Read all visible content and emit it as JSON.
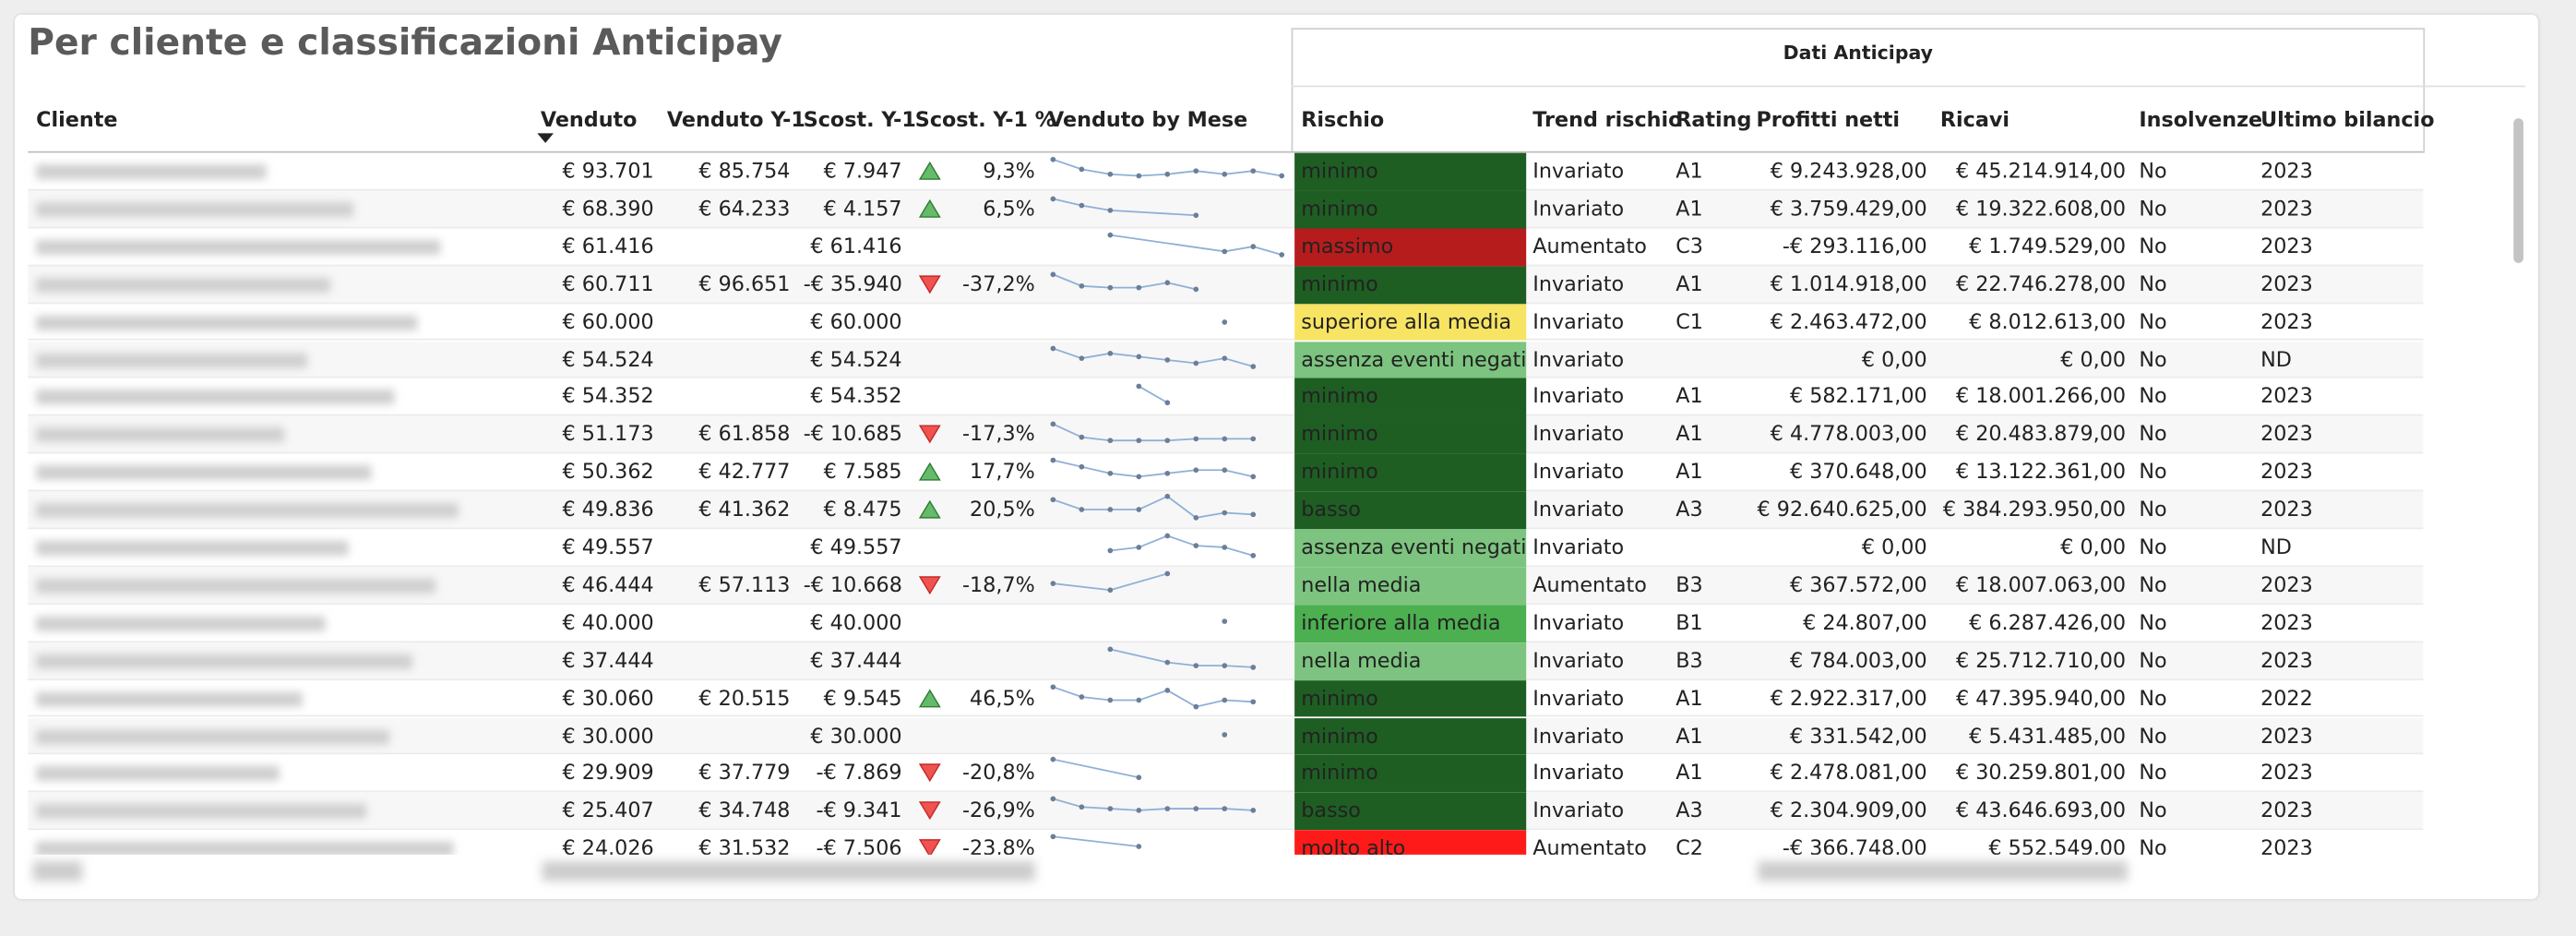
{
  "header": {
    "title": "Per cliente e classificazioni Anticipay",
    "group": "Dati Anticipay"
  },
  "table": {
    "columns": [
      "Cliente",
      "Venduto",
      "Venduto Y-1",
      "Scost. Y-1",
      "Scost. Y-1 %",
      "Venduto by Mese",
      "Rischio",
      "Trend rischio",
      "Rating",
      "Profitti netti",
      "Ricavi",
      "Insolvenze",
      "Ultimo bilancio"
    ],
    "rows": [
      {
        "cells": [
          "€ 93.701",
          "€ 85.754",
          "€ 7.947",
          "9,3%",
          "minimo",
          "Invariato",
          "A1",
          "€ 9.243.928,00",
          "€ 45.214.914,00",
          "No",
          "2023"
        ],
        "arrow": "up",
        "risk_color": "#1e5e23",
        "trend": [
          18,
          12,
          9,
          8,
          9,
          11,
          9,
          11,
          8
        ]
      },
      {
        "cells": [
          "€ 68.390",
          "€ 64.233",
          "€ 4.157",
          "6,5%",
          "minimo",
          "Invariato",
          "A1",
          "€ 3.759.429,00",
          "€ 19.322.608,00",
          "No",
          "2023"
        ],
        "arrow": "up",
        "risk_color": "#1e5e23",
        "trend": [
          17,
          13,
          10,
          null,
          null,
          7,
          null,
          null,
          null
        ]
      },
      {
        "cells": [
          "€ 61.416",
          null,
          "€ 61.416",
          null,
          "massimo",
          "Aumentato",
          "C3",
          "-€ 293.116,00",
          "€ 1.749.529,00",
          "No",
          "2023"
        ],
        "arrow": null,
        "risk_color": "#b71c1c",
        "trend": [
          null,
          null,
          18,
          null,
          null,
          null,
          8,
          11,
          6
        ]
      },
      {
        "cells": [
          "€ 60.711",
          "€ 96.651",
          "-€ 35.940",
          "-37,2%",
          "minimo",
          "Invariato",
          "A1",
          "€ 1.014.918,00",
          "€ 22.746.278,00",
          "No",
          "2023"
        ],
        "arrow": "down",
        "risk_color": "#1e5e23",
        "trend": [
          17,
          10,
          9,
          9,
          12,
          8,
          null,
          null,
          null
        ]
      },
      {
        "cells": [
          "€ 60.000",
          null,
          "€ 60.000",
          null,
          "superiore alla media",
          "Invariato",
          "C1",
          "€ 2.463.472,00",
          "€ 8.012.613,00",
          "No",
          "2023"
        ],
        "arrow": null,
        "risk_color": "#f7e463",
        "trend": [
          null,
          null,
          null,
          null,
          null,
          null,
          11,
          null,
          null
        ]
      },
      {
        "cells": [
          "€ 54.524",
          null,
          "€ 54.524",
          null,
          "assenza eventi negativi",
          "Invariato",
          null,
          "€ 0,00",
          "€ 0,00",
          "No",
          "ND"
        ],
        "arrow": null,
        "risk_color": "#7cc47f",
        "trend": [
          18,
          12,
          15,
          13,
          11,
          9,
          12,
          7,
          null
        ]
      },
      {
        "cells": [
          "€ 54.352",
          null,
          "€ 54.352",
          null,
          "minimo",
          "Invariato",
          "A1",
          "€ 582.171,00",
          "€ 18.001.266,00",
          "No",
          "2023"
        ],
        "arrow": null,
        "risk_color": "#1e5e23",
        "trend": [
          null,
          null,
          null,
          17,
          7,
          null,
          null,
          null,
          null
        ]
      },
      {
        "cells": [
          "€ 51.173",
          "€ 61.858",
          "-€ 10.685",
          "-17,3%",
          "minimo",
          "Invariato",
          "A1",
          "€ 4.778.003,00",
          "€ 20.483.879,00",
          "No",
          "2023"
        ],
        "arrow": "down",
        "risk_color": "#1e5e23",
        "trend": [
          17,
          9,
          7,
          7,
          7,
          8,
          8,
          8,
          null
        ]
      },
      {
        "cells": [
          "€ 50.362",
          "€ 42.777",
          "€ 7.585",
          "17,7%",
          "minimo",
          "Invariato",
          "A1",
          "€ 370.648,00",
          "€ 13.122.361,00",
          "No",
          "2023"
        ],
        "arrow": "up",
        "risk_color": "#1e5e23",
        "trend": [
          18,
          14,
          10,
          8,
          10,
          12,
          12,
          8,
          null
        ]
      },
      {
        "cells": [
          "€ 49.836",
          "€ 41.362",
          "€ 8.475",
          "20,5%",
          "basso",
          "Invariato",
          "A3",
          "€ 92.640.625,00",
          "€ 384.293.950,00",
          "No",
          "2023"
        ],
        "arrow": "up",
        "risk_color": "#1e5e23",
        "trend": [
          17,
          11,
          11,
          11,
          19,
          6,
          9,
          8,
          null
        ]
      },
      {
        "cells": [
          "€ 49.557",
          null,
          "€ 49.557",
          null,
          "assenza eventi negativi",
          "Invariato",
          null,
          "€ 0,00",
          "€ 0,00",
          "No",
          "ND"
        ],
        "arrow": null,
        "risk_color": "#7cc47f",
        "trend": [
          null,
          null,
          9,
          11,
          18,
          12,
          11,
          6,
          null
        ]
      },
      {
        "cells": [
          "€ 46.444",
          "€ 57.113",
          "-€ 10.668",
          "-18,7%",
          "nella media",
          "Aumentato",
          "B3",
          "€ 367.572,00",
          "€ 18.007.063,00",
          "No",
          "2023"
        ],
        "arrow": "down",
        "risk_color": "#7cc47f",
        "trend": [
          12,
          null,
          8,
          null,
          18,
          null,
          null,
          null,
          null
        ]
      },
      {
        "cells": [
          "€ 40.000",
          null,
          "€ 40.000",
          null,
          "inferiore alla media",
          "Invariato",
          "B1",
          "€ 24.807,00",
          "€ 6.287.426,00",
          "No",
          "2023"
        ],
        "arrow": null,
        "risk_color": "#4caf50",
        "trend": [
          null,
          null,
          null,
          null,
          null,
          null,
          12,
          null,
          null
        ]
      },
      {
        "cells": [
          "€ 37.444",
          null,
          "€ 37.444",
          null,
          "nella media",
          "Invariato",
          "B3",
          "€ 784.003,00",
          "€ 25.712.710,00",
          "No",
          "2023"
        ],
        "arrow": null,
        "risk_color": "#7cc47f",
        "trend": [
          null,
          null,
          18,
          null,
          10,
          8,
          8,
          7,
          null
        ]
      },
      {
        "cells": [
          "€ 30.060",
          "€ 20.515",
          "€ 9.545",
          "46,5%",
          "minimo",
          "Invariato",
          "A1",
          "€ 2.922.317,00",
          "€ 47.395.940,00",
          "No",
          "2022"
        ],
        "arrow": "up",
        "risk_color": "#1e5e23",
        "trend": [
          18,
          12,
          10,
          10,
          16,
          6,
          10,
          9,
          null
        ]
      },
      {
        "cells": [
          "€ 30.000",
          null,
          "€ 30.000",
          null,
          "minimo",
          "Invariato",
          "A1",
          "€ 331.542,00",
          "€ 5.431.485,00",
          "No",
          "2023"
        ],
        "arrow": null,
        "risk_color": "#1e5e23",
        "trend": [
          null,
          null,
          null,
          null,
          null,
          null,
          12,
          null,
          null
        ]
      },
      {
        "cells": [
          "€ 29.909",
          "€ 37.779",
          "-€ 7.869",
          "-20,8%",
          "minimo",
          "Invariato",
          "A1",
          "€ 2.478.081,00",
          "€ 30.259.801,00",
          "No",
          "2023"
        ],
        "arrow": "down",
        "risk_color": "#1e5e23",
        "trend": [
          19,
          null,
          null,
          8,
          null,
          null,
          null,
          null,
          null
        ]
      },
      {
        "cells": [
          "€ 25.407",
          "€ 34.748",
          "-€ 9.341",
          "-26,9%",
          "basso",
          "Invariato",
          "A3",
          "€ 2.304.909,00",
          "€ 43.646.693,00",
          "No",
          "2023"
        ],
        "arrow": "down",
        "risk_color": "#1e5e23",
        "trend": [
          18,
          13,
          12,
          11,
          12,
          12,
          12,
          11,
          null
        ]
      },
      {
        "cells": [
          "€ 24.026",
          "€ 31.532",
          "-€ 7.506",
          "-23,8%",
          "molto alto",
          "Aumentato",
          "C2",
          "-€ 366.748,00",
          "€ 552.549,00",
          "No",
          "2023"
        ],
        "arrow": "down",
        "risk_color": "#ff1a1a",
        "trend": [
          18,
          null,
          null,
          12,
          null,
          null,
          null,
          null,
          null
        ]
      }
    ]
  }
}
